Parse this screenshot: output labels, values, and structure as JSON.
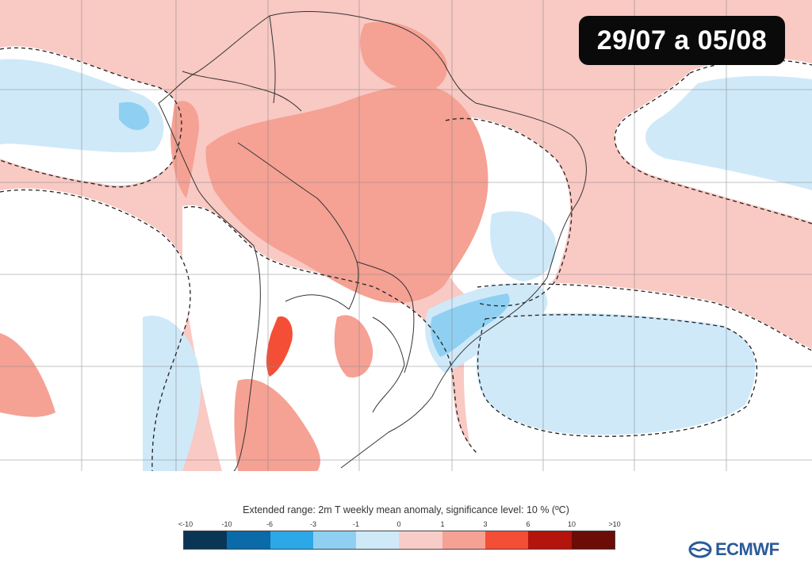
{
  "date_range": "29/07 a 05/08",
  "legend": {
    "title": "Extended range: 2m T weekly mean anomaly, significance level: 10 % (ºC)",
    "tick_labels": [
      "<-10",
      "-10",
      "-6",
      "-3",
      "-1",
      "0",
      "1",
      "3",
      "6",
      "10",
      ">10"
    ],
    "colors": [
      "#0b3555",
      "#0b6aa8",
      "#2ca8e8",
      "#8fd0f2",
      "#cfe9f9",
      "#f8cdc8",
      "#f5a194",
      "#f54e36",
      "#b3140b",
      "#6b0c06"
    ]
  },
  "logo": {
    "text": "ECMWF"
  }
}
